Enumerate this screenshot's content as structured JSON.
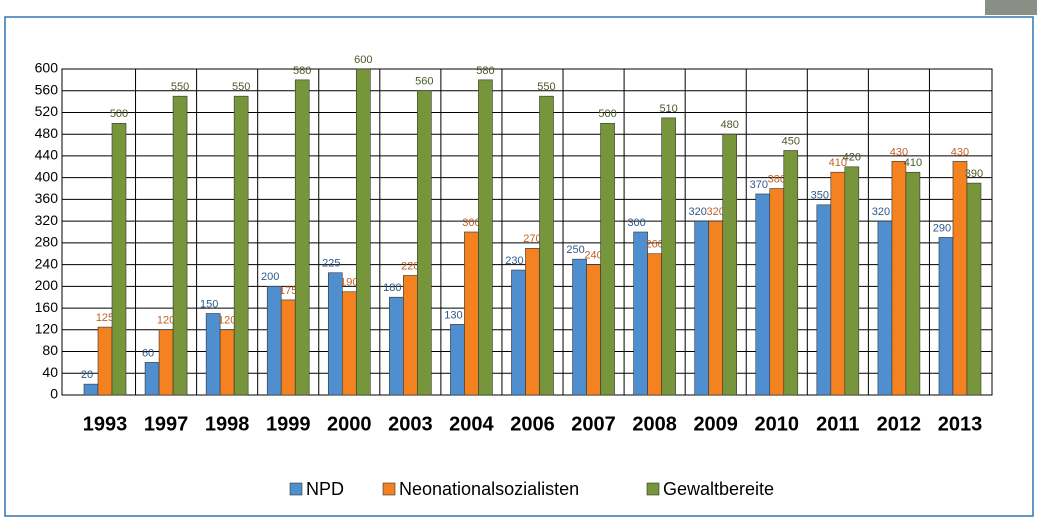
{
  "chart_data": {
    "type": "bar",
    "categories": [
      "1993",
      "1997",
      "1998",
      "1999",
      "2000",
      "2003",
      "2004",
      "2006",
      "2007",
      "2008",
      "2009",
      "2010",
      "2011",
      "2012",
      "2013"
    ],
    "series": [
      {
        "name": "NPD",
        "color": "#4f8fd0",
        "values": [
          20,
          60,
          150,
          200,
          225,
          180,
          130,
          230,
          250,
          300,
          320,
          370,
          350,
          320,
          290
        ]
      },
      {
        "name": "Neonationalsozialisten",
        "color": "#f58220",
        "values": [
          125,
          120,
          120,
          175,
          190,
          220,
          300,
          270,
          240,
          260,
          320,
          380,
          410,
          430,
          430
        ]
      },
      {
        "name": "Gewaltbereite",
        "color": "#77963c",
        "values": [
          500,
          550,
          550,
          580,
          600,
          560,
          580,
          550,
          500,
          510,
          480,
          450,
          420,
          410,
          390
        ]
      }
    ],
    "ylim": [
      0,
      600
    ],
    "yticks": [
      0,
      40,
      80,
      120,
      160,
      200,
      240,
      280,
      320,
      360,
      400,
      440,
      480,
      520,
      560,
      600
    ],
    "grid": true,
    "legend": "bottom"
  }
}
